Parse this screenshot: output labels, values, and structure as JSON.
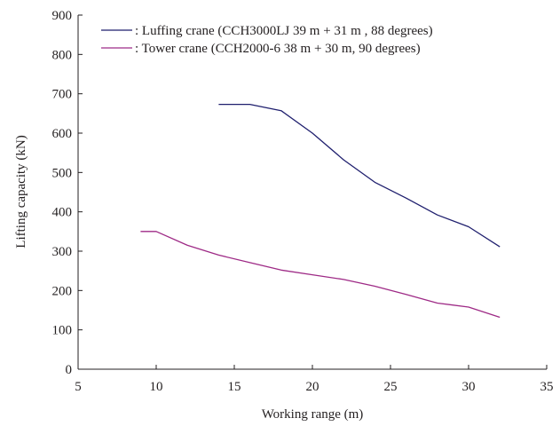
{
  "chart_data": {
    "type": "line",
    "title": "",
    "xlabel": "Working range  (m)",
    "ylabel": "Lifting capacity  (kN)",
    "xlim": [
      5,
      35
    ],
    "ylim": [
      0,
      900
    ],
    "x_ticks": [
      "5",
      "10",
      "15",
      "20",
      "25",
      "30",
      "35"
    ],
    "y_ticks": [
      "0",
      "100",
      "200",
      "300",
      "400",
      "500",
      "600",
      "700",
      "800",
      "900"
    ],
    "grid": false,
    "legend_position": "top-center",
    "series": [
      {
        "name": ": Luffing crane (CCH3000LJ  39 m + 31 m , 88 degrees)",
        "color": "#1f1f6e",
        "x": [
          14,
          16,
          18,
          20,
          22,
          24,
          26,
          28,
          30,
          32
        ],
        "y": [
          673,
          673,
          657,
          600,
          532,
          475,
          435,
          392,
          362,
          311
        ]
      },
      {
        "name": ": Tower crane (CCH2000-6  38 m + 30 m, 90 degrees)",
        "color": "#9e2a86",
        "x": [
          9,
          10,
          12,
          14,
          16,
          18,
          20,
          22,
          24,
          26,
          28,
          30,
          32
        ],
        "y": [
          350,
          350,
          315,
          290,
          271,
          252,
          240,
          228,
          211,
          190,
          168,
          158,
          132
        ]
      }
    ]
  }
}
